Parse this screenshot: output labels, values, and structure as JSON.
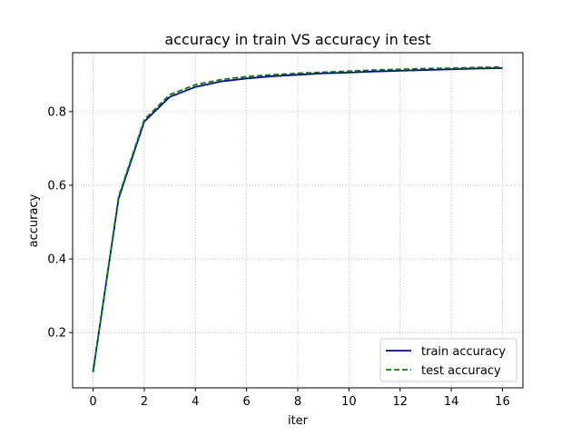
{
  "chart_data": {
    "type": "line",
    "title": "accuracy in train VS accuracy in test",
    "xlabel": "iter",
    "ylabel": "accuracy",
    "xlim": [
      -0.8,
      16.8
    ],
    "ylim": [
      0.05,
      0.96
    ],
    "xticks": [
      0,
      2,
      4,
      6,
      8,
      10,
      12,
      14,
      16
    ],
    "yticks": [
      0.2,
      0.4,
      0.6,
      0.8
    ],
    "xtick_labels": [
      "0",
      "2",
      "4",
      "6",
      "8",
      "10",
      "12",
      "14",
      "16"
    ],
    "ytick_labels": [
      "0.2",
      "0.4",
      "0.6",
      "0.8"
    ],
    "grid": true,
    "legend_position": "lower-right",
    "x": [
      0,
      1,
      2,
      3,
      4,
      5,
      6,
      7,
      8,
      9,
      10,
      11,
      12,
      13,
      14,
      15,
      16
    ],
    "series": [
      {
        "name": "train accuracy",
        "color": "#0000bb",
        "style": "solid",
        "values": [
          0.095,
          0.565,
          0.773,
          0.84,
          0.867,
          0.882,
          0.89,
          0.896,
          0.9,
          0.904,
          0.906,
          0.909,
          0.911,
          0.913,
          0.915,
          0.917,
          0.918
        ]
      },
      {
        "name": "test accuracy",
        "color": "#008000",
        "style": "dashed",
        "values": [
          0.092,
          0.57,
          0.778,
          0.846,
          0.873,
          0.887,
          0.895,
          0.9,
          0.904,
          0.907,
          0.91,
          0.913,
          0.915,
          0.917,
          0.918,
          0.92,
          0.921
        ]
      }
    ]
  }
}
